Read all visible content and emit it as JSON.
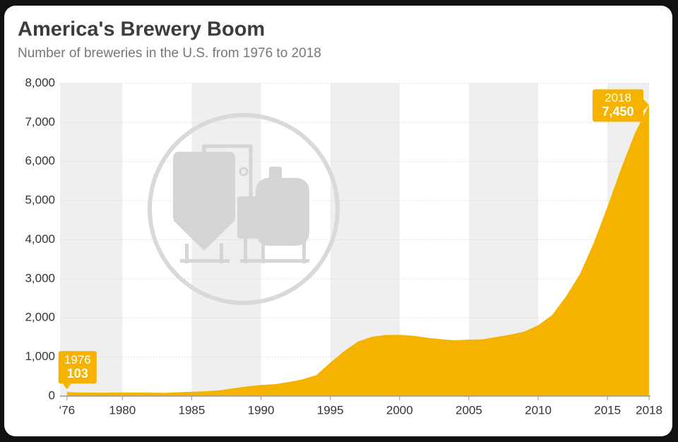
{
  "chart_data": {
    "type": "area",
    "title": "America's Brewery Boom",
    "subtitle": "Number of breweries in the U.S. from 1976 to 2018",
    "color": "#f5b300",
    "x": [
      1976,
      1977,
      1978,
      1979,
      1980,
      1981,
      1982,
      1983,
      1984,
      1985,
      1986,
      1987,
      1988,
      1989,
      1990,
      1991,
      1992,
      1993,
      1994,
      1995,
      1996,
      1997,
      1998,
      1999,
      2000,
      2001,
      2002,
      2003,
      2004,
      2005,
      2006,
      2007,
      2008,
      2009,
      2010,
      2011,
      2012,
      2013,
      2014,
      2015,
      2016,
      2017,
      2018
    ],
    "values": [
      103,
      90,
      89,
      89,
      92,
      90,
      88,
      84,
      97,
      110,
      124,
      150,
      199,
      249,
      284,
      305,
      359,
      428,
      537,
      855,
      1149,
      1396,
      1518,
      1565,
      1566,
      1543,
      1492,
      1455,
      1426,
      1445,
      1454,
      1513,
      1574,
      1649,
      1813,
      2069,
      2544,
      3112,
      3907,
      4847,
      5838,
      6739,
      7450
    ],
    "xlim": [
      1975.5,
      2018.1
    ],
    "xticks": [
      {
        "value": 1976,
        "label": "‘76"
      },
      1980,
      1985,
      1990,
      1995,
      2000,
      2005,
      2010,
      2015,
      2018
    ],
    "ylim": [
      0,
      8000
    ],
    "yticks": [
      0,
      {
        "value": 1000,
        "label": "1,000"
      },
      {
        "value": 2000,
        "label": "2,000"
      },
      {
        "value": 3000,
        "label": "3,000"
      },
      {
        "value": 4000,
        "label": "4,000"
      },
      {
        "value": 5000,
        "label": "5,000"
      },
      {
        "value": 6000,
        "label": "6,000"
      },
      {
        "value": 7000,
        "label": "7,000"
      },
      {
        "value": 8000,
        "label": "8,000"
      }
    ],
    "grid": true,
    "annotations": [
      {
        "x": 1976,
        "y": 103,
        "label": "103"
      },
      {
        "x": 2018,
        "y": 7450,
        "label": "7,450"
      }
    ]
  }
}
